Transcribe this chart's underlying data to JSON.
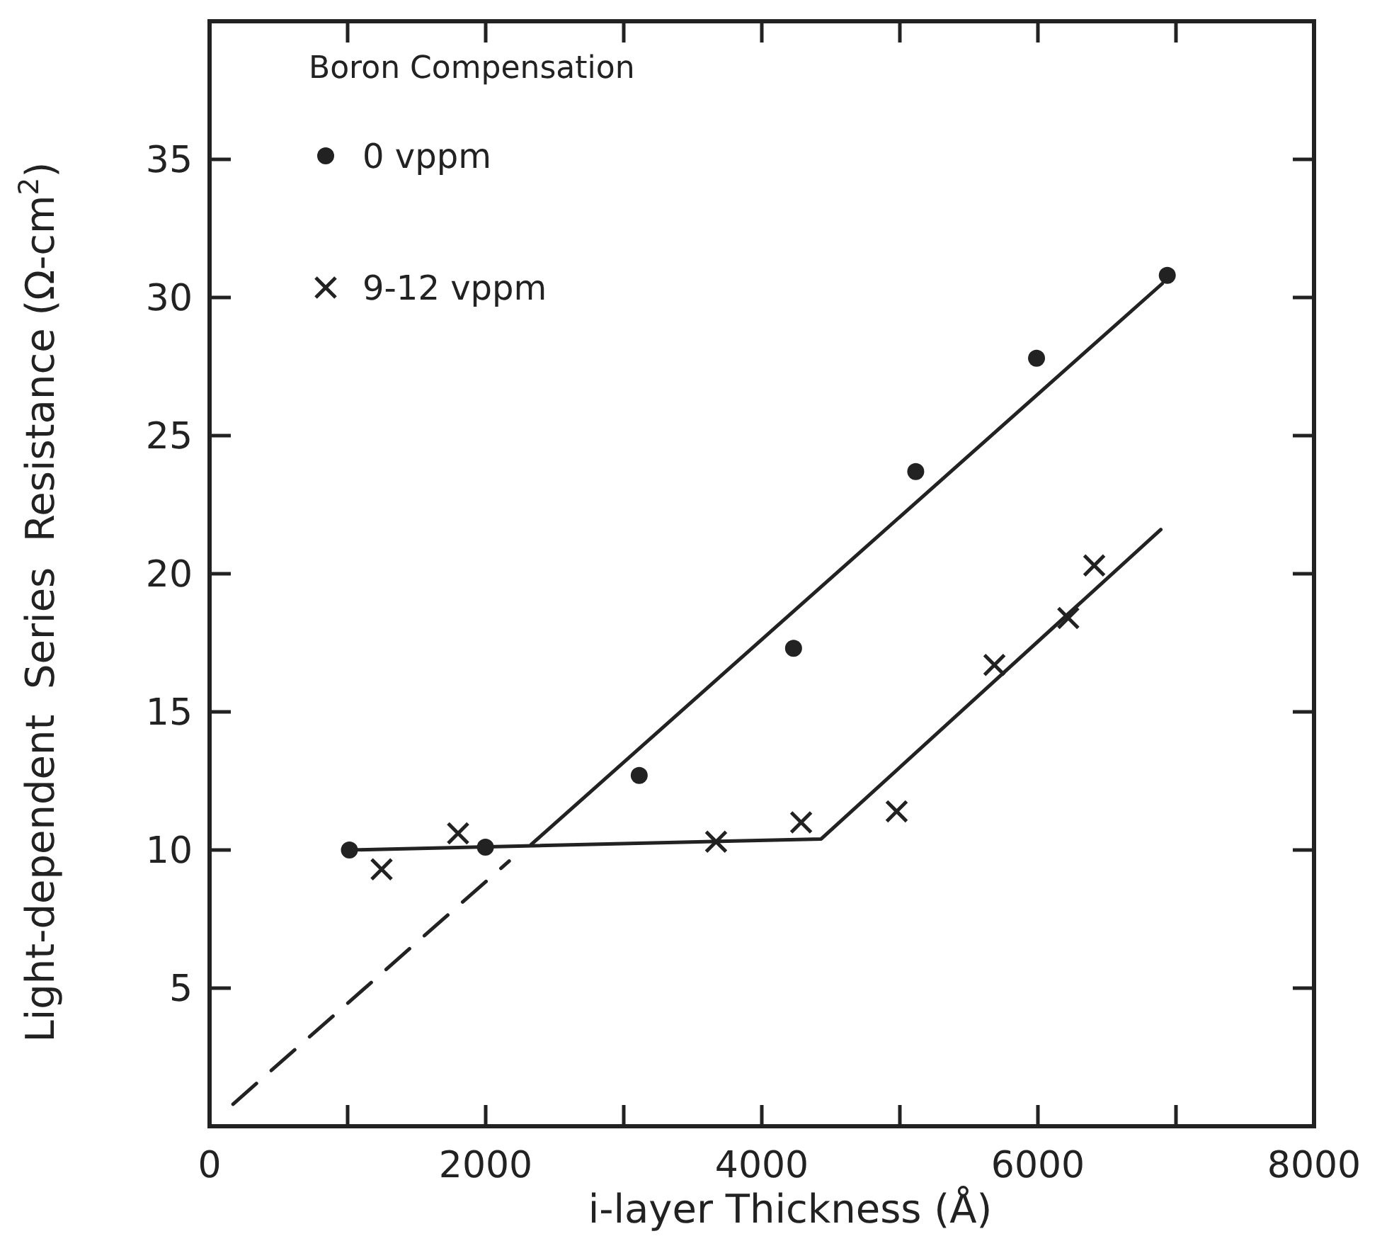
{
  "chart_data": {
    "type": "scatter",
    "xlabel": "i-layer Thickness (Å)",
    "ylabel": "Light-dependent  Series  Resistance (Ω-cm$^{2}$)",
    "legend_title": "Boron Compensation",
    "legend": "top left",
    "xlim": [
      0,
      8000
    ],
    "ylim": [
      0,
      40
    ],
    "xticks": [
      0,
      {
        "value": 1000,
        "label": null
      },
      2000,
      {
        "value": 3000,
        "label": null
      },
      4000,
      {
        "value": 5000,
        "label": null
      },
      6000,
      {
        "value": 7000,
        "label": null
      },
      8000
    ],
    "yticks": [
      5,
      10,
      15,
      20,
      25,
      30,
      35
    ],
    "series": [
      {
        "name": "0 vppm",
        "marker": "circle",
        "color": "#222222",
        "x": [
          1013,
          1998,
          3112,
          4230,
          5115,
          5990,
          6937
        ],
        "values": [
          10.0,
          10.1,
          12.7,
          17.3,
          23.7,
          27.8,
          30.8
        ]
      },
      {
        "name": "9-12 vppm",
        "marker": "cross",
        "color": "#222222",
        "x": [
          1246,
          1800,
          3669,
          4285,
          4977,
          5685,
          6220,
          6408
        ],
        "values": [
          9.3,
          10.6,
          10.3,
          11.0,
          11.4,
          16.7,
          18.4,
          20.3
        ]
      },
      {
        "type": "line",
        "marker": "none",
        "line_style": "solid",
        "color": "#222222",
        "x": [
          2330,
          6900
        ],
        "values": [
          10.2,
          30.5
        ]
      },
      {
        "type": "line",
        "marker": "none",
        "line_style": "dashed",
        "color": "#222222",
        "x": [
          170,
          2170
        ],
        "values": [
          0.8,
          9.6
        ]
      },
      {
        "type": "line",
        "marker": "none",
        "line_style": "solid",
        "color": "#222222",
        "x": [
          1013,
          4430,
          6890
        ],
        "values": [
          10.0,
          10.4,
          21.6
        ]
      }
    ]
  }
}
